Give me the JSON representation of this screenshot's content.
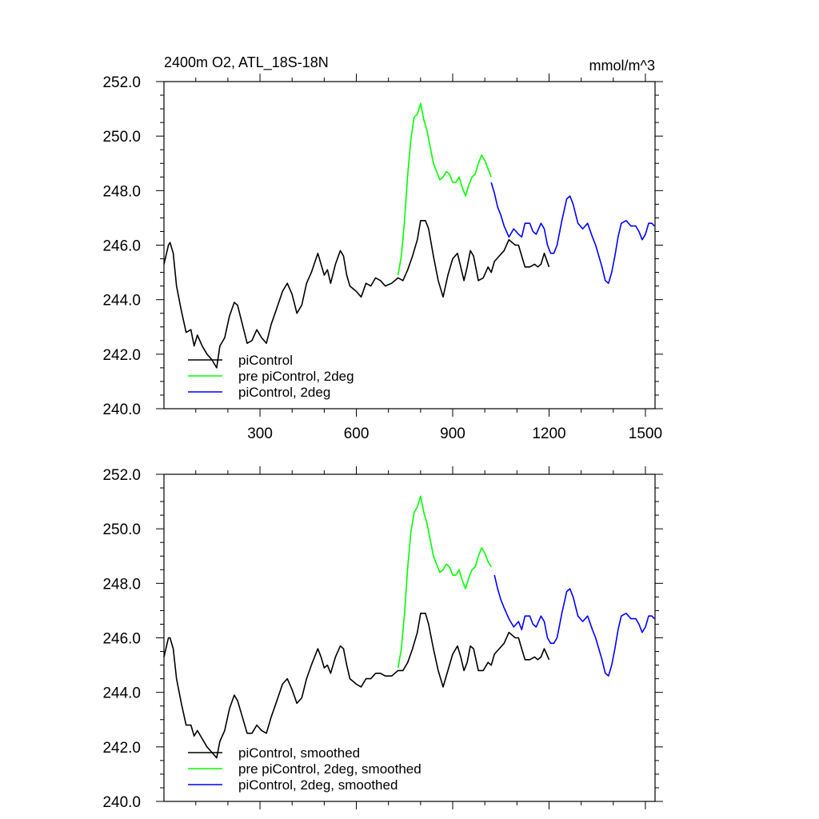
{
  "chart_data": [
    {
      "type": "line",
      "title": "2400m O2, ATL_18S-18N",
      "units": "mmol/m^3",
      "xlim": [
        1,
        1530
      ],
      "ylim": [
        240.0,
        252.0
      ],
      "x_ticks": [
        300,
        600,
        900,
        1200,
        1500
      ],
      "x_tick_labels": [
        "300",
        "600",
        "900",
        "1200",
        "1500"
      ],
      "y_ticks": [
        240.0,
        242.0,
        244.0,
        246.0,
        248.0,
        250.0,
        252.0
      ],
      "y_tick_labels": [
        "240.0",
        "242.0",
        "244.0",
        "246.0",
        "248.0",
        "250.0",
        "252.0"
      ],
      "grid": false,
      "legend_position": "bottom-left",
      "series": [
        {
          "name": "piControl",
          "color": "#000000",
          "x": [
            1,
            15,
            20,
            30,
            40,
            55,
            70,
            85,
            95,
            105,
            120,
            135,
            150,
            165,
            175,
            190,
            205,
            220,
            230,
            245,
            260,
            275,
            290,
            305,
            320,
            335,
            350,
            370,
            385,
            400,
            415,
            430,
            445,
            460,
            480,
            490,
            500,
            510,
            520,
            535,
            550,
            560,
            570,
            580,
            590,
            600,
            615,
            630,
            645,
            660,
            675,
            690,
            710,
            730,
            745,
            760,
            775,
            790,
            800,
            815,
            825,
            840,
            855,
            870,
            885,
            900,
            915,
            925,
            935,
            945,
            955,
            965,
            980,
            995,
            1010,
            1020,
            1030,
            1045,
            1060,
            1075,
            1085,
            1095,
            1105,
            1115,
            1125,
            1140,
            1155,
            1165,
            1175,
            1185,
            1200
          ],
          "y": [
            245.3,
            246.0,
            246.1,
            245.7,
            244.5,
            243.6,
            242.8,
            242.9,
            242.3,
            242.7,
            242.3,
            242.0,
            241.8,
            241.5,
            242.3,
            242.6,
            243.4,
            243.9,
            243.8,
            243.1,
            242.4,
            242.5,
            242.9,
            242.6,
            242.4,
            243.1,
            243.6,
            244.3,
            244.6,
            244.2,
            243.5,
            243.8,
            244.6,
            245.0,
            245.7,
            245.3,
            244.9,
            245.1,
            244.6,
            245.3,
            245.8,
            245.6,
            244.9,
            244.5,
            244.4,
            244.3,
            244.1,
            244.6,
            244.5,
            244.8,
            244.7,
            244.5,
            244.6,
            244.8,
            244.7,
            245.1,
            245.6,
            246.2,
            246.9,
            246.9,
            246.6,
            245.6,
            244.7,
            244.1,
            244.9,
            245.5,
            245.7,
            245.2,
            244.7,
            245.2,
            245.8,
            245.6,
            244.7,
            244.8,
            245.2,
            245.0,
            245.4,
            245.6,
            245.8,
            246.2,
            246.1,
            246.0,
            246.0,
            245.6,
            245.2,
            245.2,
            245.3,
            245.2,
            245.3,
            245.7,
            245.2
          ]
        },
        {
          "name": "pre piControl, 2deg",
          "color": "#00ff00",
          "x": [
            730,
            740,
            750,
            760,
            770,
            780,
            790,
            800,
            810,
            820,
            830,
            840,
            850,
            860,
            870,
            880,
            890,
            900,
            910,
            920,
            930,
            940,
            950,
            960,
            970,
            980,
            990,
            1000,
            1010,
            1020
          ],
          "y": [
            244.9,
            245.6,
            246.9,
            248.6,
            249.9,
            250.7,
            250.8,
            251.2,
            250.6,
            250.2,
            249.6,
            249.0,
            248.7,
            248.4,
            248.5,
            248.7,
            248.6,
            248.3,
            248.3,
            248.5,
            248.1,
            247.8,
            248.2,
            248.5,
            248.6,
            249.0,
            249.3,
            249.1,
            248.8,
            248.5
          ]
        },
        {
          "name": "piControl, 2deg",
          "color": "#0000ff",
          "x": [
            1020,
            1030,
            1040,
            1050,
            1060,
            1075,
            1090,
            1105,
            1115,
            1125,
            1140,
            1150,
            1160,
            1175,
            1185,
            1195,
            1205,
            1215,
            1225,
            1240,
            1255,
            1265,
            1275,
            1290,
            1305,
            1320,
            1335,
            1345,
            1355,
            1365,
            1375,
            1385,
            1395,
            1405,
            1415,
            1425,
            1440,
            1455,
            1470,
            1480,
            1490,
            1500,
            1510,
            1520,
            1528
          ],
          "y": [
            248.3,
            247.9,
            247.4,
            247.1,
            246.7,
            246.3,
            246.6,
            246.4,
            246.3,
            246.8,
            246.8,
            246.5,
            246.4,
            246.8,
            246.6,
            246.0,
            245.7,
            245.7,
            246.0,
            246.9,
            247.7,
            247.8,
            247.5,
            246.8,
            246.6,
            246.8,
            246.3,
            246.0,
            245.6,
            245.2,
            244.7,
            244.6,
            245.0,
            245.6,
            246.3,
            246.8,
            246.9,
            246.7,
            246.7,
            246.5,
            246.2,
            246.4,
            246.8,
            246.8,
            246.7
          ]
        }
      ]
    },
    {
      "type": "line",
      "title": "",
      "xlim": [
        1,
        1530
      ],
      "ylim": [
        240.0,
        252.0
      ],
      "x_ticks": [
        300,
        600,
        900,
        1200,
        1500
      ],
      "y_ticks": [
        240.0,
        242.0,
        244.0,
        246.0,
        248.0,
        250.0,
        252.0
      ],
      "y_tick_labels": [
        "240.0",
        "242.0",
        "244.0",
        "246.0",
        "248.0",
        "250.0",
        "252.0"
      ],
      "grid": false,
      "legend_position": "bottom-left",
      "series": [
        {
          "name": "piControl, smoothed",
          "color": "#000000",
          "x": [
            1,
            15,
            20,
            30,
            40,
            55,
            70,
            85,
            95,
            105,
            120,
            135,
            150,
            165,
            175,
            190,
            205,
            220,
            230,
            245,
            260,
            275,
            290,
            305,
            320,
            335,
            350,
            370,
            385,
            400,
            415,
            430,
            445,
            460,
            480,
            490,
            500,
            510,
            520,
            535,
            550,
            560,
            570,
            580,
            590,
            600,
            615,
            630,
            645,
            660,
            675,
            690,
            710,
            730,
            745,
            760,
            775,
            790,
            800,
            815,
            825,
            840,
            855,
            870,
            885,
            900,
            915,
            925,
            935,
            945,
            955,
            965,
            980,
            995,
            1010,
            1020,
            1030,
            1045,
            1060,
            1075,
            1085,
            1095,
            1105,
            1115,
            1125,
            1140,
            1155,
            1165,
            1175,
            1185,
            1200
          ],
          "y": [
            245.3,
            246.0,
            246.0,
            245.6,
            244.5,
            243.6,
            242.8,
            242.8,
            242.4,
            242.6,
            242.3,
            242.0,
            241.8,
            241.6,
            242.2,
            242.6,
            243.4,
            243.9,
            243.7,
            243.1,
            242.5,
            242.5,
            242.8,
            242.6,
            242.5,
            243.1,
            243.6,
            244.3,
            244.5,
            244.1,
            243.6,
            243.8,
            244.5,
            245.0,
            245.6,
            245.3,
            244.9,
            245.0,
            244.7,
            245.3,
            245.7,
            245.6,
            245.0,
            244.5,
            244.4,
            244.3,
            244.2,
            244.5,
            244.5,
            244.7,
            244.7,
            244.6,
            244.6,
            244.8,
            244.8,
            245.1,
            245.6,
            246.2,
            246.9,
            246.9,
            246.5,
            245.6,
            244.8,
            244.2,
            244.8,
            245.4,
            245.7,
            245.3,
            244.8,
            245.1,
            245.7,
            245.6,
            244.8,
            244.8,
            245.1,
            245.0,
            245.4,
            245.6,
            245.8,
            246.2,
            246.1,
            246.0,
            246.0,
            245.6,
            245.2,
            245.2,
            245.3,
            245.2,
            245.3,
            245.6,
            245.2
          ]
        },
        {
          "name": "pre piControl, 2deg, smoothed",
          "color": "#00ff00",
          "x": [
            730,
            740,
            750,
            760,
            770,
            780,
            790,
            800,
            810,
            820,
            830,
            840,
            850,
            860,
            870,
            880,
            890,
            900,
            910,
            920,
            930,
            940,
            950,
            960,
            970,
            980,
            990,
            1000,
            1010,
            1020
          ],
          "y": [
            244.9,
            245.6,
            246.9,
            248.6,
            249.9,
            250.6,
            250.8,
            251.2,
            250.6,
            250.2,
            249.6,
            249.0,
            248.7,
            248.4,
            248.5,
            248.7,
            248.6,
            248.3,
            248.3,
            248.5,
            248.1,
            247.8,
            248.2,
            248.5,
            248.6,
            249.0,
            249.3,
            249.1,
            248.8,
            248.6
          ]
        },
        {
          "name": "piControl, 2deg, smoothed",
          "color": "#0000ff",
          "x": [
            1030,
            1040,
            1050,
            1060,
            1075,
            1090,
            1105,
            1115,
            1125,
            1140,
            1150,
            1160,
            1175,
            1185,
            1195,
            1205,
            1215,
            1225,
            1240,
            1255,
            1265,
            1275,
            1290,
            1305,
            1320,
            1335,
            1345,
            1355,
            1365,
            1375,
            1385,
            1395,
            1405,
            1415,
            1425,
            1440,
            1455,
            1470,
            1480,
            1490,
            1500,
            1510,
            1520,
            1528
          ],
          "y": [
            248.3,
            247.8,
            247.4,
            247.1,
            246.7,
            246.4,
            246.6,
            246.3,
            246.8,
            246.8,
            246.5,
            246.4,
            246.8,
            246.6,
            246.0,
            245.8,
            245.8,
            246.0,
            246.9,
            247.7,
            247.8,
            247.5,
            246.8,
            246.6,
            246.8,
            246.3,
            246.0,
            245.6,
            245.2,
            244.7,
            244.6,
            245.0,
            245.6,
            246.3,
            246.8,
            246.9,
            246.7,
            246.7,
            246.5,
            246.2,
            246.4,
            246.8,
            246.8,
            246.7
          ]
        }
      ]
    }
  ]
}
